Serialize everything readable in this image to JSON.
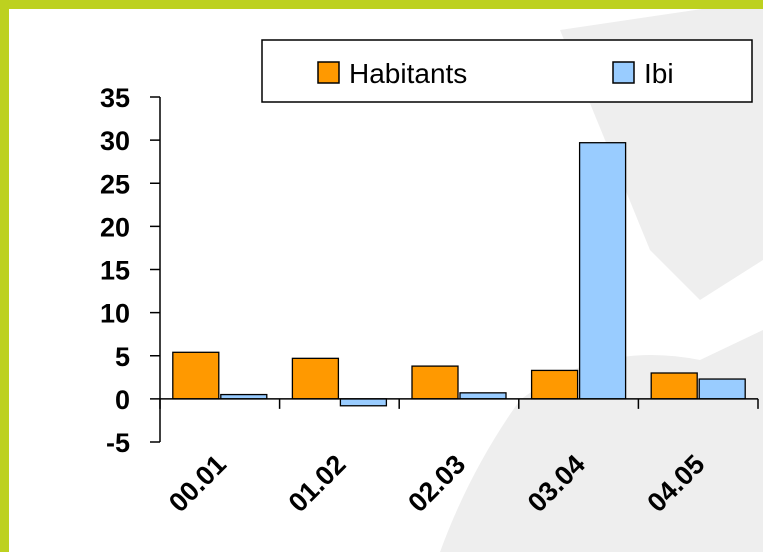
{
  "colors": {
    "frame": "#bdd11f",
    "watermark": "#eeeeee",
    "axis": "#000000"
  },
  "chart_data": {
    "type": "bar",
    "categories": [
      "00.01",
      "01.02",
      "02.03",
      "03.04",
      "04.05"
    ],
    "series": [
      {
        "name": "Habitants",
        "color": "#ff9900",
        "values": [
          5.4,
          4.7,
          3.8,
          3.3,
          3.0
        ]
      },
      {
        "name": "Ibi",
        "color": "#99ccff",
        "values": [
          0.5,
          -0.8,
          0.7,
          29.7,
          2.3
        ]
      }
    ],
    "ylim": [
      -5,
      35
    ],
    "yticks": [
      -5,
      0,
      5,
      10,
      15,
      20,
      25,
      30,
      35
    ],
    "legend_position": "top-right",
    "grid": false
  }
}
